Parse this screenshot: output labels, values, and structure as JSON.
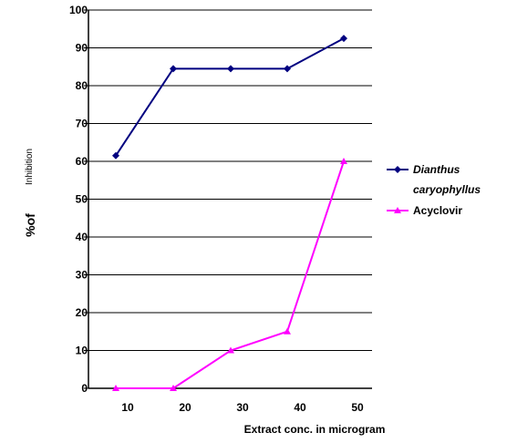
{
  "chart_data": {
    "type": "line",
    "title": "",
    "xlabel": "Extract conc. in microgram",
    "ylabel_main": "%of",
    "ylabel_sub": "Inhibition",
    "x": [
      10,
      20,
      30,
      40,
      50
    ],
    "xtick_labels": [
      "10",
      "20",
      "30",
      "40",
      "50"
    ],
    "ytick_labels": [
      "0",
      "10",
      "20",
      "30",
      "40",
      "50",
      "60",
      "70",
      "80",
      "90",
      "100"
    ],
    "ylim": [
      0,
      100
    ],
    "grid": "horizontal",
    "legend_position": "right",
    "series": [
      {
        "name_line1": "Dianthus",
        "name_line2": "caryophyllus",
        "color": "#000080",
        "marker": "diamond",
        "values": [
          61.5,
          84.5,
          84.5,
          84.5,
          92.5
        ]
      },
      {
        "name": "Acyclovir",
        "color": "#ff00ff",
        "marker": "triangle",
        "values": [
          0,
          0,
          10,
          15,
          60
        ]
      }
    ]
  }
}
